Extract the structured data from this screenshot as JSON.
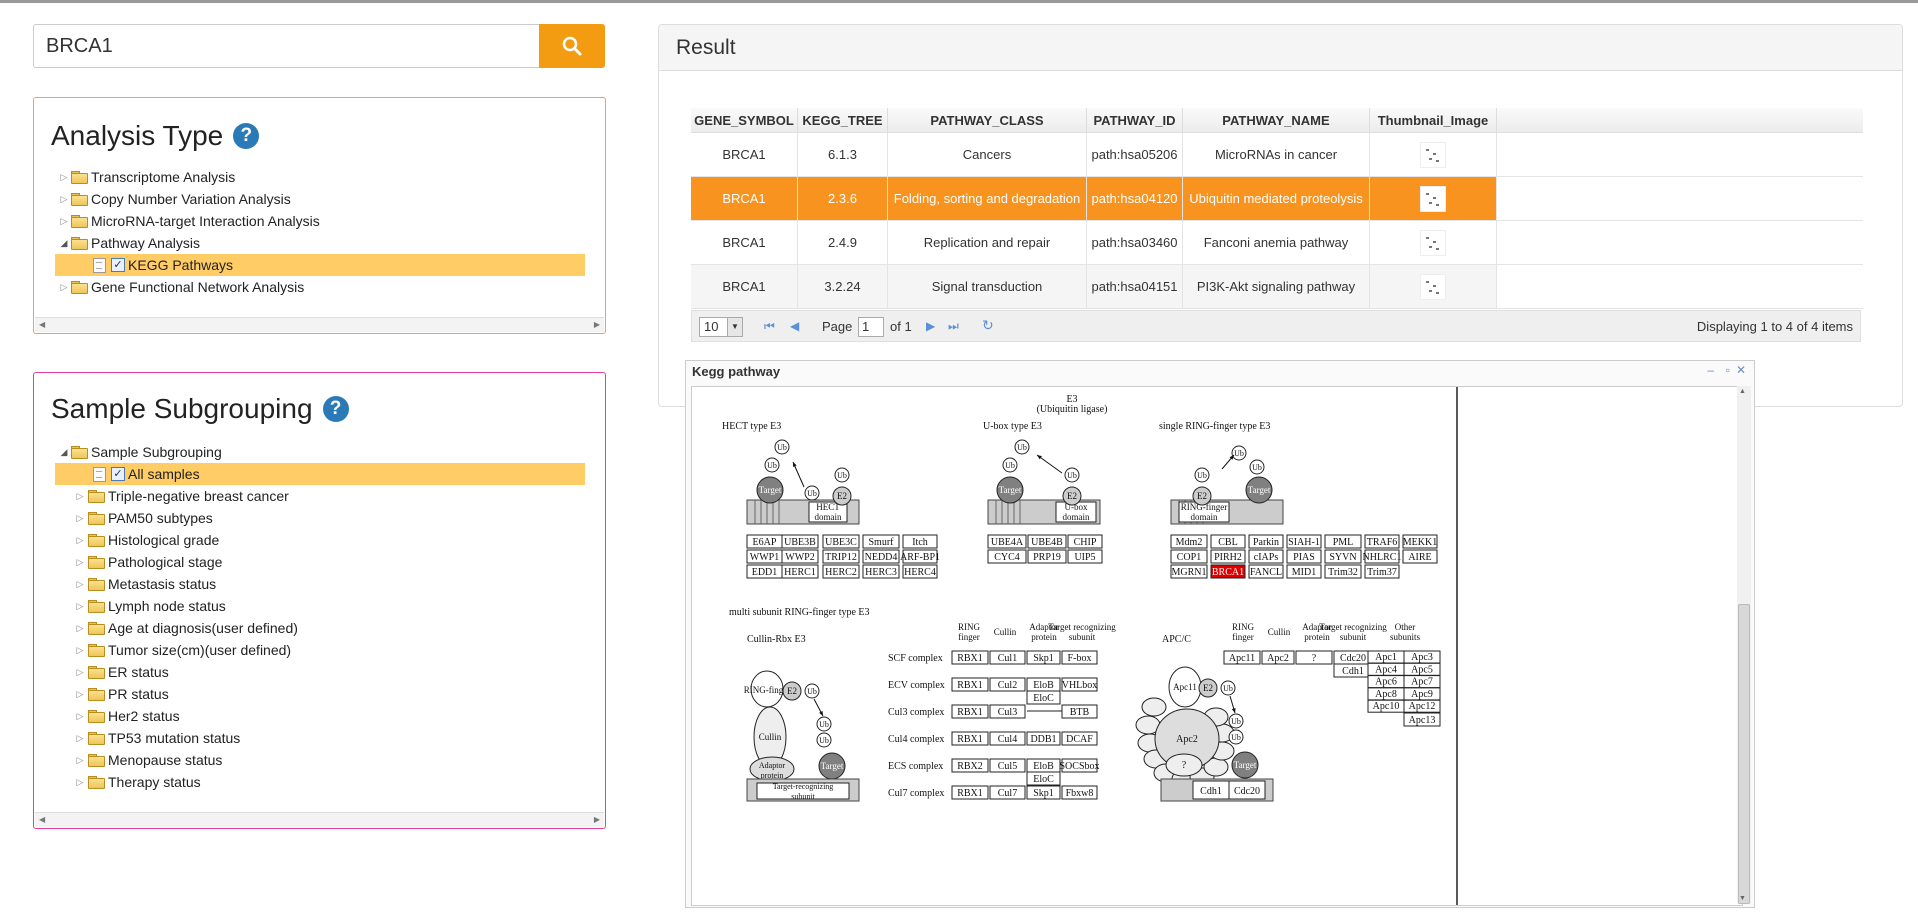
{
  "search": {
    "value": "BRCA1",
    "button_icon": "search-icon"
  },
  "analysis": {
    "title": "Analysis Type",
    "items": [
      {
        "label": "Transcriptome Analysis"
      },
      {
        "label": "Copy Number Variation Analysis"
      },
      {
        "label": "MicroRNA-target Interaction Analysis"
      },
      {
        "label": "Pathway Analysis"
      },
      {
        "label": "KEGG Pathways"
      },
      {
        "label": "Gene Functional Network Analysis"
      }
    ]
  },
  "subgroup": {
    "title": "Sample Subgrouping",
    "root": "Sample Subgrouping",
    "selected": "All samples",
    "items": [
      "Triple-negative breast cancer",
      "PAM50 subtypes",
      "Histological grade",
      "Pathological stage",
      "Metastasis status",
      "Lymph node status",
      "Age at diagnosis(user defined)",
      "Tumor size(cm)(user defined)",
      "ER status",
      "PR status",
      "Her2 status",
      "TP53 mutation status",
      "Menopause status",
      "Therapy status"
    ]
  },
  "result": {
    "title": "Result",
    "columns": [
      "GENE_SYMBOL",
      "KEGG_TREE",
      "PATHWAY_CLASS",
      "PATHWAY_ID",
      "PATHWAY_NAME",
      "Thumbnail_Image"
    ],
    "rows": [
      [
        "BRCA1",
        "6.1.3",
        "Cancers",
        "path:hsa05206",
        "MicroRNAs in cancer"
      ],
      [
        "BRCA1",
        "2.3.6",
        "Folding, sorting and degradation",
        "path:hsa04120",
        "Ubiquitin mediated proteolysis"
      ],
      [
        "BRCA1",
        "2.4.9",
        "Replication and repair",
        "path:hsa03460",
        "Fanconi anemia pathway"
      ],
      [
        "BRCA1",
        "3.2.24",
        "Signal transduction",
        "path:hsa04151",
        "PI3K-Akt signaling pathway"
      ]
    ],
    "pager": {
      "page_size": "10",
      "page_label": "Page",
      "page": "1",
      "of_label": "of 1",
      "display": "Displaying 1 to 4 of 4 items"
    }
  },
  "kegg": {
    "title": "Kegg pathway",
    "diagram": {
      "e3": "E3",
      "e3_sub": "(Ubiquitin ligase)",
      "hect_title": "HECT type E3",
      "ubox_title": "U-box type E3",
      "ring_title": "single RING-finger type E3",
      "multi_title": "multi subunit RING-finger type E3",
      "cullin_rbx": "Cullin-Rbx E3",
      "apcc": "APC/C",
      "hect_genes": [
        "E6AP",
        "UBE3B",
        "UBE3C",
        "Smurf",
        "Itch",
        "WWP1",
        "WWP2",
        "TRIP12",
        "NEDD4",
        "ARF-BP1",
        "EDD1",
        "HERC1",
        "HERC2",
        "HERC3",
        "HERC4"
      ],
      "ubox_genes": [
        "UBE4A",
        "UBE4B",
        "CHIP",
        "CYC4",
        "PRP19",
        "UIP5"
      ],
      "ring_genes": [
        "Mdm2",
        "CBL",
        "Parkin",
        "SIAH-1",
        "PML",
        "TRAF6",
        "MEKK1",
        "COP1",
        "PIRH2",
        "cIAPs",
        "PIAS",
        "SYVN",
        "NHLRC1",
        "AIRE",
        "MGRN1",
        "BRCA1",
        "FANCL",
        "MID1",
        "Trim32",
        "Trim37"
      ],
      "cul_headers": [
        "RING finger",
        "Cullin",
        "Adaptor protein",
        "Target recognizing subunit"
      ],
      "complexes": [
        {
          "name": "SCF complex",
          "genes": [
            "RBX1",
            "Cul1",
            "Skp1",
            "F-box"
          ]
        },
        {
          "name": "ECV complex",
          "genes": [
            "RBX1",
            "Cul2",
            "EloB",
            "VHLbox"
          ],
          "extra": "EloC"
        },
        {
          "name": "Cul3 complex",
          "genes": [
            "RBX1",
            "Cul3",
            "",
            "BTB"
          ]
        },
        {
          "name": "Cul4 complex",
          "genes": [
            "RBX1",
            "Cul4",
            "DDB1",
            "DCAF"
          ]
        },
        {
          "name": "ECS complex",
          "genes": [
            "RBX2",
            "Cul5",
            "EloB",
            "SOCSbox"
          ],
          "extra": "EloC"
        },
        {
          "name": "Cul7 complex",
          "genes": [
            "RBX1",
            "Cul7",
            "Skp1",
            "Fbxw8"
          ]
        }
      ],
      "apc_headers": [
        "RING finger",
        "Cullin",
        "Adaptor protein",
        "Target recognizing subunit",
        "Other subunits"
      ],
      "apc_row": [
        "Apc11",
        "Apc2",
        "?",
        "Cdc20"
      ],
      "apc_cdh1": "Cdh1",
      "apc_other": [
        "Apc1",
        "Apc3",
        "Apc4",
        "Apc5",
        "Apc6",
        "Apc7",
        "Apc8",
        "Apc9",
        "Apc10",
        "Apc12",
        "Apc13"
      ],
      "labels": {
        "target": "Target",
        "ub": "Ub",
        "e2": "E2",
        "hect_domain": "HECT domain",
        "ubox_domain": "U-box domain",
        "ring_domain": "RING-finger domain",
        "ring": "RING-finger",
        "cullin": "Cullin",
        "adaptor": "Adaptor protein",
        "trs": "Target-recognizing subunit",
        "apc11": "Apc11",
        "apc2": "Apc2",
        "q": "?",
        "cdh1": "Cdh1",
        "cdc20": "Cdc20"
      }
    }
  },
  "colors": {
    "accent": "#f39c12",
    "selected_row": "#f7931e",
    "tree_selected": "#ffcc66",
    "highlight_gene": "#e00000"
  }
}
